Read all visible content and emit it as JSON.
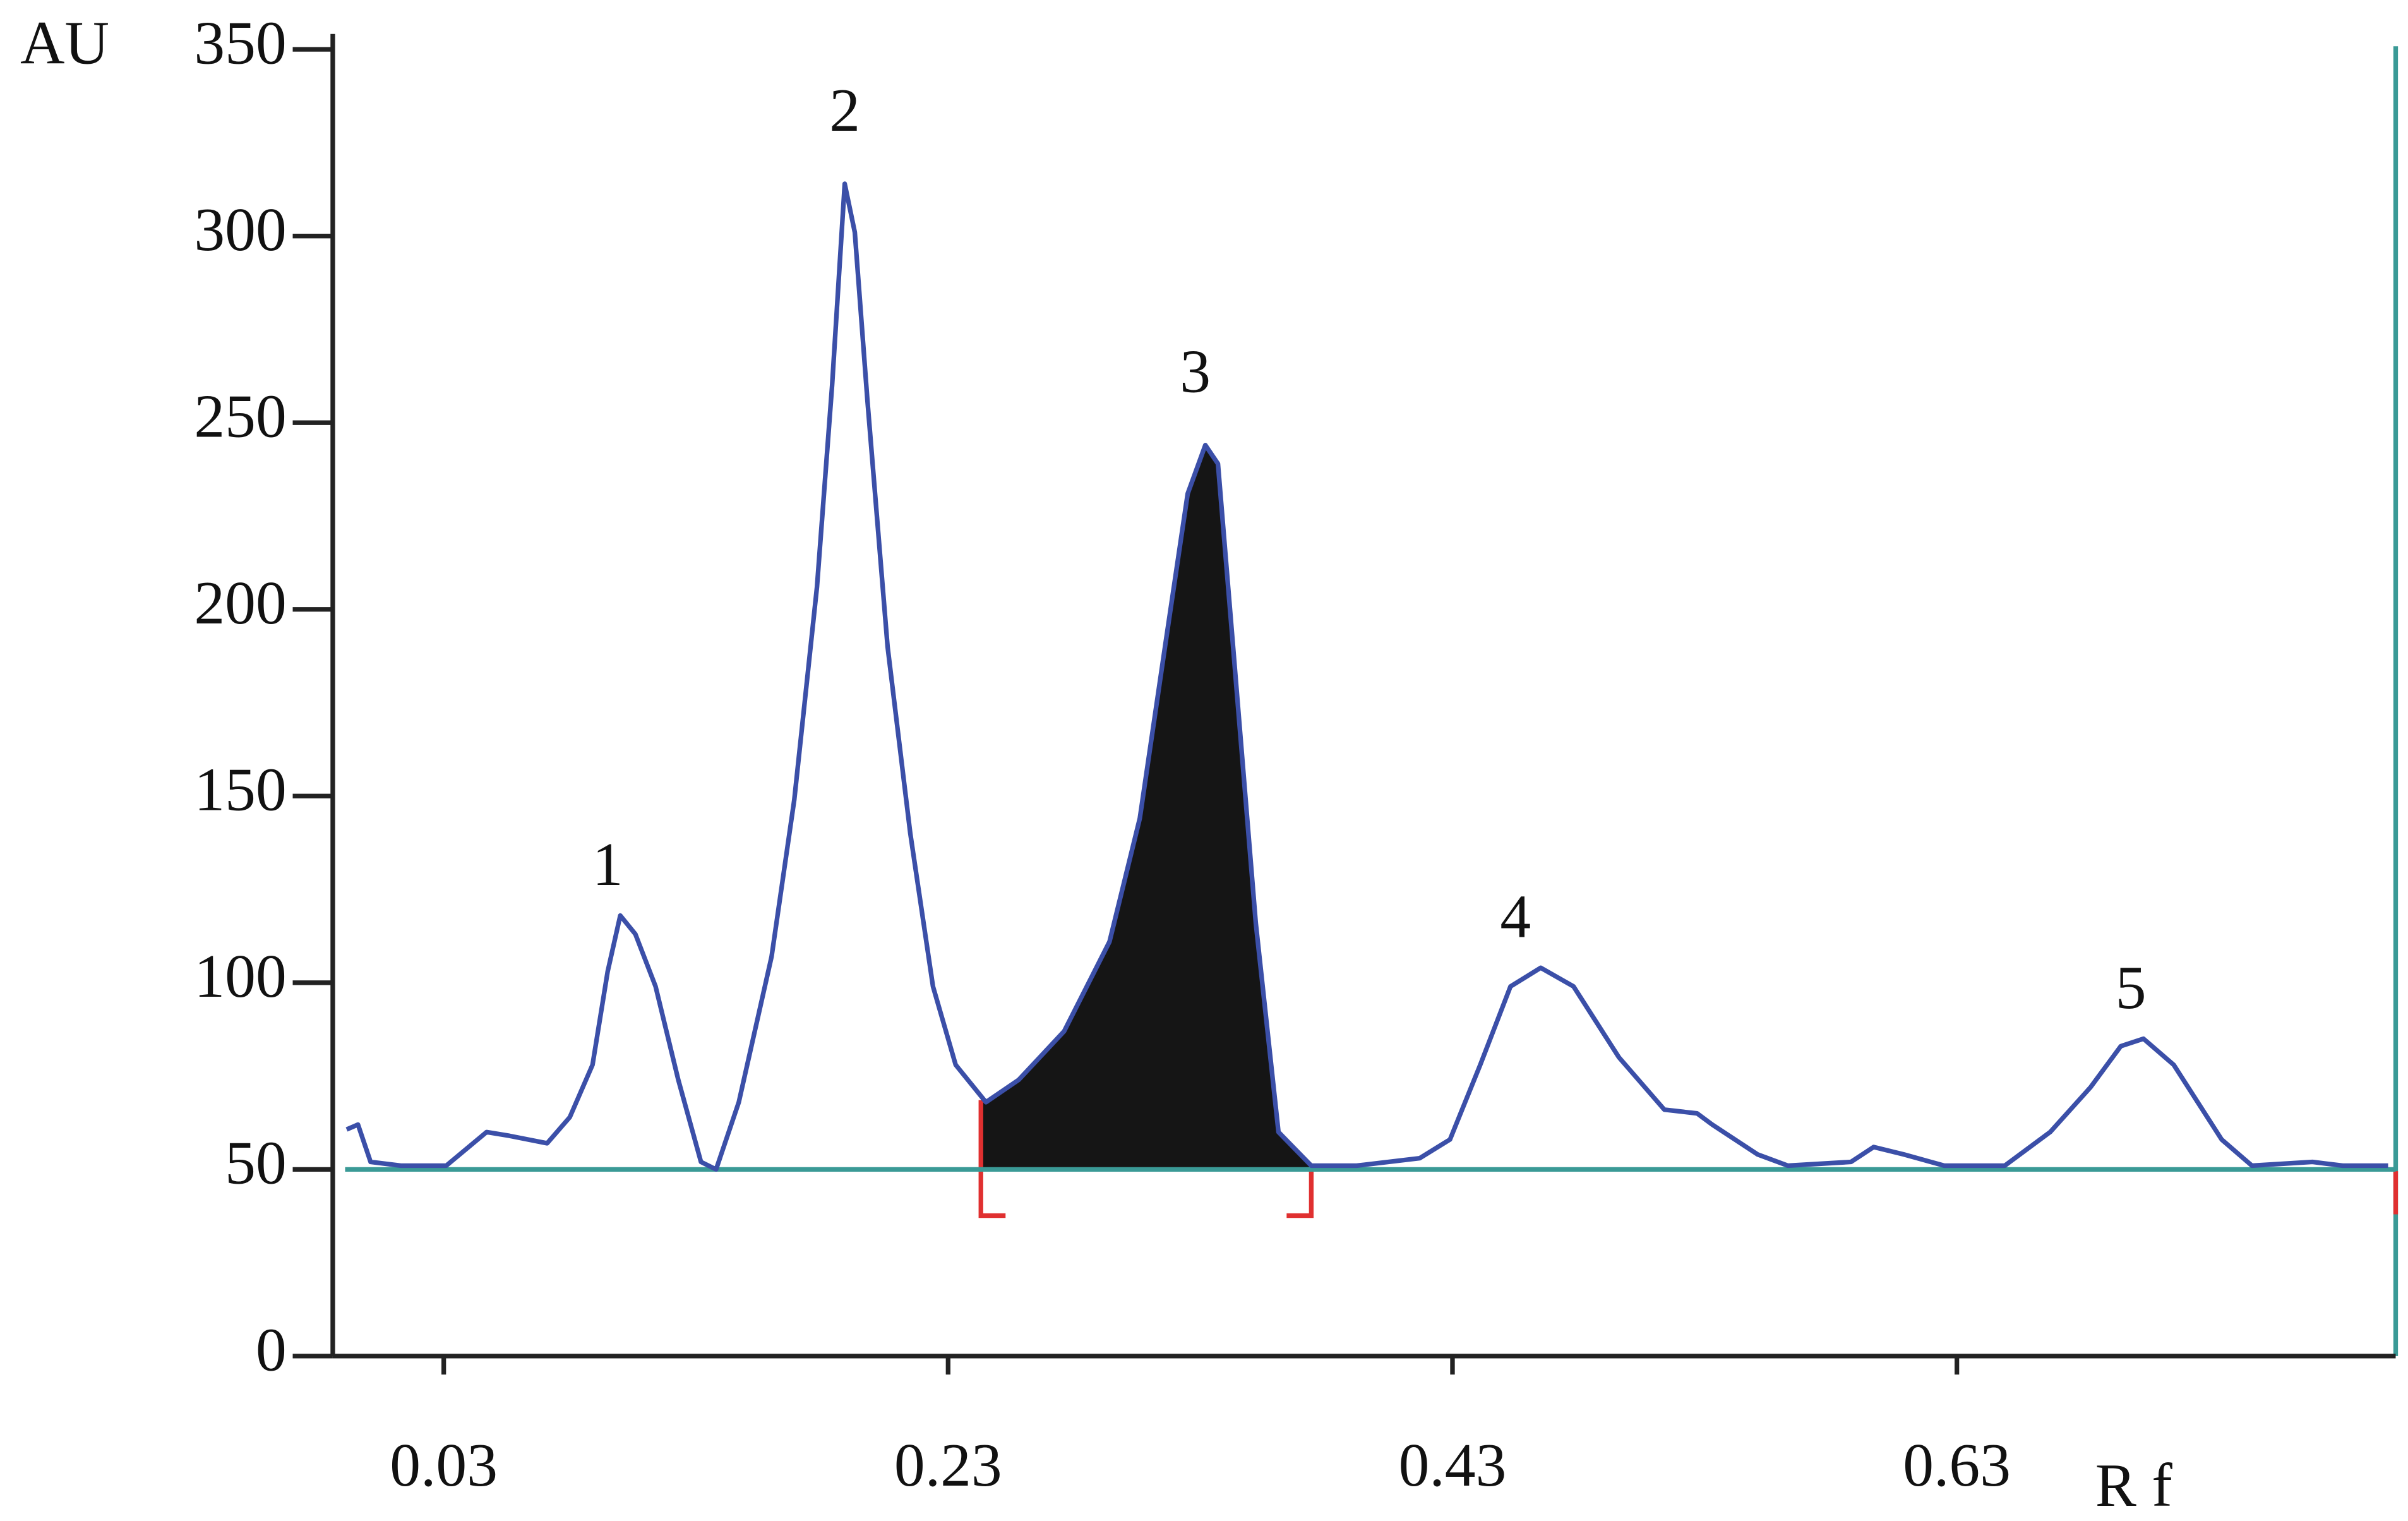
{
  "chart_data": {
    "type": "line",
    "y_label": "AU",
    "x_label": "R f",
    "xlim": [
      -0.014,
      0.804
    ],
    "ylim": [
      0,
      350
    ],
    "xticks": [
      0.03,
      0.23,
      0.43,
      0.63
    ],
    "yticks": [
      0,
      50,
      100,
      150,
      200,
      250,
      300,
      350
    ],
    "baseline": 50,
    "baseline_color": "#3a9a96",
    "shaded_range": [
      0.243,
      0.374
    ],
    "shaded_color": "#151515",
    "series": [
      {
        "color": "#3b4fa8",
        "x": [
          -0.0085,
          -0.004,
          0.001,
          0.013,
          0.031,
          0.047,
          0.056,
          0.071,
          0.08,
          0.089,
          0.095,
          0.1,
          0.106,
          0.114,
          0.123,
          0.132,
          0.138,
          0.147,
          0.16,
          0.169,
          0.178,
          0.184,
          0.189,
          0.193,
          0.198,
          0.206,
          0.215,
          0.224,
          0.233,
          0.245,
          0.258,
          0.276,
          0.294,
          0.306,
          0.316,
          0.325,
          0.332,
          0.337,
          0.343,
          0.352,
          0.361,
          0.374,
          0.392,
          0.417,
          0.429,
          0.441,
          0.453,
          0.465,
          0.478,
          0.496,
          0.514,
          0.527,
          0.533,
          0.551,
          0.563,
          0.588,
          0.597,
          0.609,
          0.625,
          0.649,
          0.667,
          0.683,
          0.695,
          0.704,
          0.716,
          0.735,
          0.747,
          0.771,
          0.783,
          0.801
        ],
        "values": [
          60.7,
          62,
          52,
          51,
          51,
          60,
          59,
          57,
          64,
          78,
          103,
          118,
          113,
          99,
          74,
          52,
          50,
          68,
          107,
          149,
          206,
          260,
          314,
          301,
          256,
          190,
          140,
          99,
          78,
          68,
          74,
          87,
          111,
          144,
          190,
          231,
          244,
          239,
          190,
          116,
          60,
          51,
          51,
          53,
          58,
          78,
          99,
          104,
          99,
          80,
          66,
          65,
          62,
          54,
          51,
          52,
          56,
          54,
          51,
          51,
          60,
          72,
          83,
          85,
          78,
          58,
          51,
          52,
          51,
          51
        ]
      }
    ],
    "annotations": [
      {
        "text": "1",
        "x": 0.095,
        "y": 130
      },
      {
        "text": "2",
        "x": 0.189,
        "y": 332
      },
      {
        "text": "3",
        "x": 0.328,
        "y": 262
      },
      {
        "text": "4",
        "x": 0.455,
        "y": 116
      },
      {
        "text": "5",
        "x": 0.699,
        "y": 97
      }
    ]
  }
}
